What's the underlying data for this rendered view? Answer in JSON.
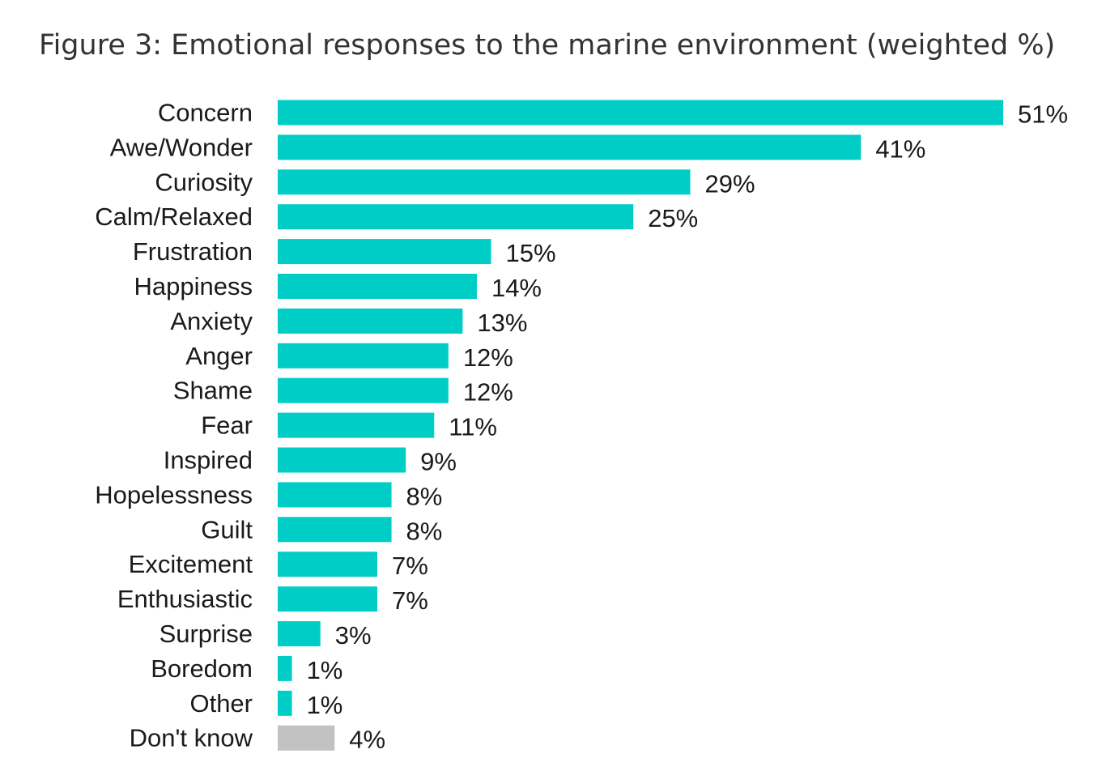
{
  "title": "Figure 3: Emotional responses to the marine environment (weighted %)",
  "chart_data": {
    "type": "bar",
    "orientation": "horizontal",
    "title": "Figure 3: Emotional responses to the marine environment (weighted %)",
    "xlabel": "",
    "ylabel": "",
    "xlim": [
      0,
      51
    ],
    "grid": false,
    "legend": "none",
    "value_suffix": "%",
    "categories": [
      "Concern",
      "Awe/Wonder",
      "Curiosity",
      "Calm/Relaxed",
      "Frustration",
      "Happiness",
      "Anxiety",
      "Anger",
      "Shame",
      "Fear",
      "Inspired",
      "Hopelessness",
      "Guilt",
      "Excitement",
      "Enthusiastic",
      "Surprise",
      "Boredom",
      "Other",
      "Don't know"
    ],
    "values": [
      51,
      41,
      29,
      25,
      15,
      14,
      13,
      12,
      12,
      11,
      9,
      8,
      8,
      7,
      7,
      3,
      1,
      1,
      4
    ],
    "value_labels": [
      "51%",
      "41%",
      "29%",
      "25%",
      "15%",
      "14%",
      "13%",
      "12%",
      "12%",
      "11%",
      "9%",
      "8%",
      "8%",
      "7%",
      "7%",
      "3%",
      "1%",
      "1%",
      "4%"
    ],
    "colors": {
      "bar": "#00cdc5",
      "dont_know_bar": "#c2c2c2",
      "text": "#1a1a1a",
      "title": "#333333"
    }
  }
}
